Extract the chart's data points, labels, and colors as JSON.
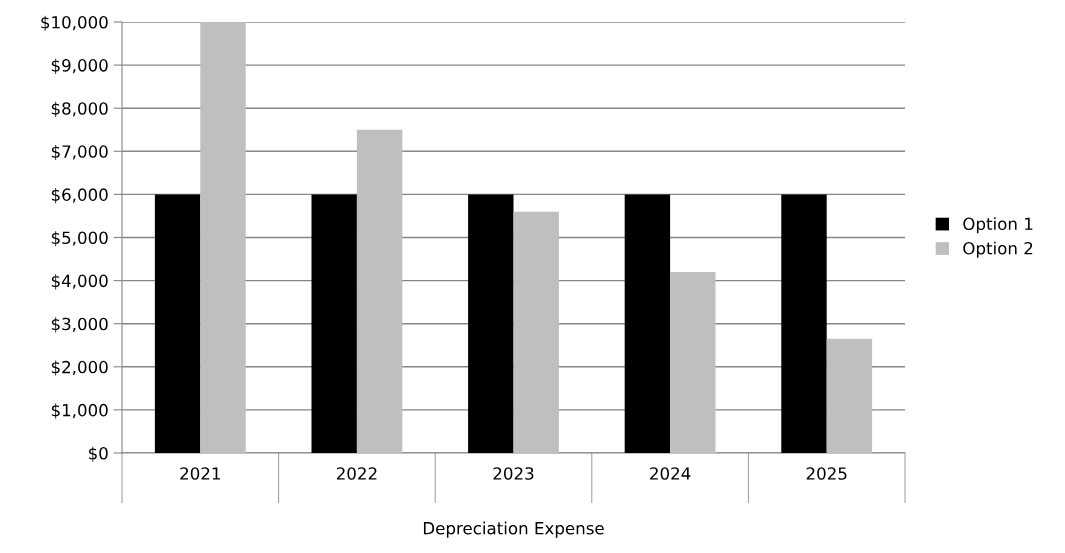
{
  "chart_data": {
    "type": "bar",
    "xlabel": "Depreciation Expense",
    "categories": [
      "2021",
      "2022",
      "2023",
      "2024",
      "2025"
    ],
    "series": [
      {
        "name": "Option 1",
        "color": "#000000",
        "values": [
          6000,
          6000,
          6000,
          6000,
          6000
        ]
      },
      {
        "name": "Option 2",
        "color": "#bfbfbf",
        "values": [
          10000,
          7500,
          5600,
          4200,
          2650
        ]
      }
    ],
    "ylim": [
      0,
      10000
    ],
    "yticks": [
      {
        "value": 0,
        "label": "$0"
      },
      {
        "value": 1000,
        "label": "$1,000"
      },
      {
        "value": 2000,
        "label": "$2,000"
      },
      {
        "value": 3000,
        "label": "$3,000"
      },
      {
        "value": 4000,
        "label": "$4,000"
      },
      {
        "value": 5000,
        "label": "$5,000"
      },
      {
        "value": 6000,
        "label": "$6,000"
      },
      {
        "value": 7000,
        "label": "$7,000"
      },
      {
        "value": 8000,
        "label": "$8,000"
      },
      {
        "value": 9000,
        "label": "$9,000"
      },
      {
        "value": 10000,
        "label": "$10,000"
      }
    ],
    "grid": "y",
    "legend": "right"
  }
}
